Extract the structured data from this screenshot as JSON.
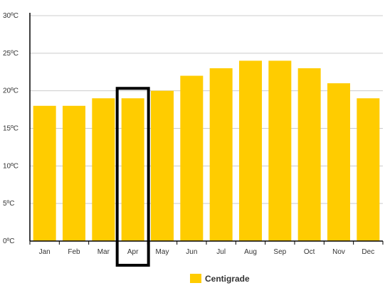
{
  "chart_data": {
    "type": "bar",
    "categories": [
      "Jan",
      "Feb",
      "Mar",
      "Apr",
      "May",
      "Jun",
      "Jul",
      "Aug",
      "Sep",
      "Oct",
      "Nov",
      "Dec"
    ],
    "series": [
      {
        "name": "Centigrade",
        "values": [
          18,
          18,
          19,
          19,
          20,
          22,
          23,
          24,
          24,
          23,
          21,
          19
        ]
      }
    ],
    "y_ticks": [
      "0ºC",
      "5ºC",
      "10ºC",
      "15ºC",
      "20ºC",
      "25ºC",
      "30ºC"
    ],
    "ylim": [
      0,
      30
    ],
    "y_step": 5,
    "grid": true,
    "legend_position": "bottom-center",
    "highlighted_category": "Apr",
    "colors": {
      "bar": "#ffcc00",
      "grid": "#cccccc",
      "axis": "#000000",
      "highlight": "#000000"
    }
  }
}
